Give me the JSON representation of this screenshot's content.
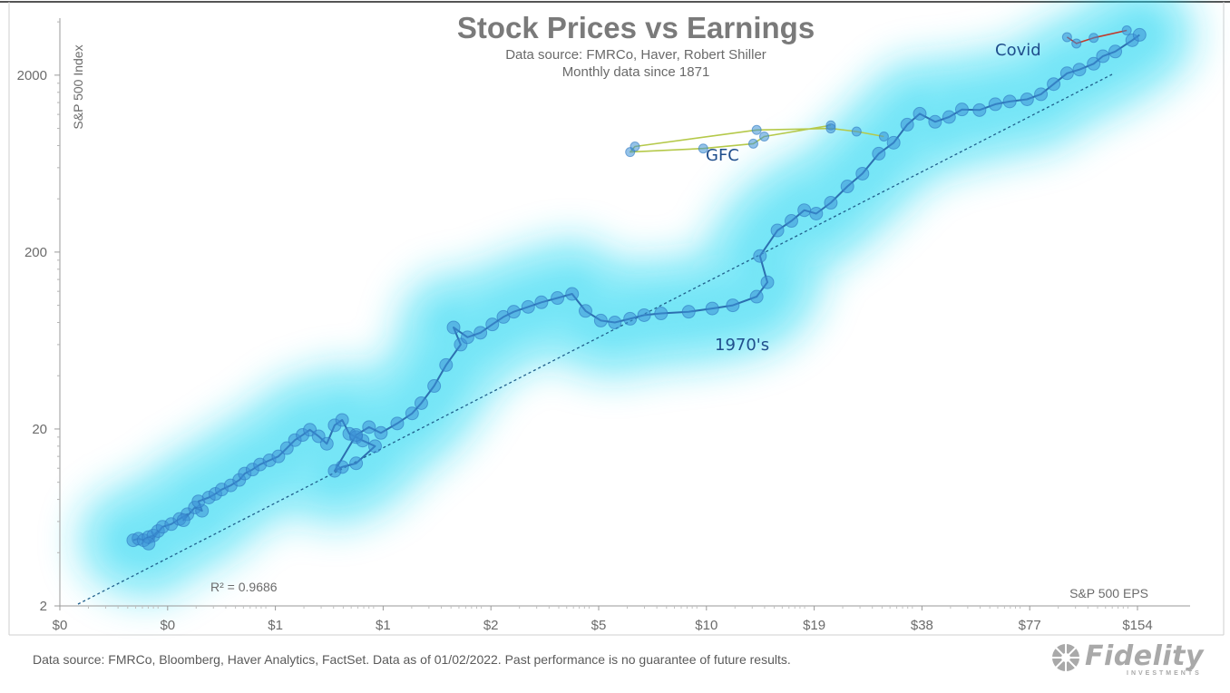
{
  "chart_data": {
    "type": "scatter",
    "title": "Stock Prices vs Earnings",
    "subtitle_lines": [
      "Data source: FMRCo, Haver, Robert Shiller",
      "Monthly data since 1871"
    ],
    "xlabel": "S&P 500 EPS",
    "ylabel": "S&P 500 Index",
    "x_scale": "log",
    "y_scale": "log",
    "x_tick_labels": [
      "$0",
      "$0",
      "$1",
      "$1",
      "$2",
      "$5",
      "$10",
      "$19",
      "$38",
      "$77",
      "$154"
    ],
    "y_tick_labels": [
      "2",
      "20",
      "200",
      "2000"
    ],
    "trendline": {
      "style": "dotted",
      "color": "#1f5f8c"
    },
    "r_squared": "R² = 0.9686",
    "annotations": [
      {
        "label": "Covid"
      },
      {
        "label": "GFC"
      },
      {
        "label": "1970's"
      }
    ],
    "colors": {
      "points": "#3d8fd6",
      "glow": "#19d6f2",
      "band_recent": "#b5c94a"
    },
    "series": [
      {
        "x": [
          0.3,
          0.31,
          0.32,
          0.33,
          0.34,
          0.35,
          0.33,
          0.36,
          0.38,
          0.4,
          0.42,
          0.41,
          0.44,
          0.46,
          0.45,
          0.48,
          0.5,
          0.52,
          0.55,
          0.58,
          0.6,
          0.63,
          0.66,
          0.7,
          0.74,
          0.78,
          0.82,
          0.86,
          0.9,
          0.95,
          1.0,
          1.05,
          1.1,
          1.15,
          1.2,
          1.25,
          1.35,
          1.2,
          1.1,
          1.05,
          1.2,
          1.3,
          1.4,
          1.55,
          1.7,
          1.8,
          1.95,
          2.1,
          2.3,
          2.2,
          2.4,
          2.6,
          2.8,
          3.0,
          3.2,
          3.5,
          3.8,
          4.2,
          4.6,
          5.0,
          5.5,
          6.0,
          6.6,
          7.2,
          8.0,
          9.5,
          11.0,
          12.5,
          14.5,
          15.5,
          14.8,
          16.5,
          18.0,
          19.5,
          21.0,
          23.0,
          25.5,
          28.0,
          31.0,
          34.0,
          37.0,
          40.0,
          44.0,
          48.0,
          52.0,
          58.0,
          64.0,
          70.0,
          78.0,
          85.0,
          92.0,
          100.0,
          108.0,
          118.0,
          125.0,
          135.0,
          150.0,
          157.0
        ],
        "y": [
          4.7,
          4.8,
          4.7,
          4.9,
          5.0,
          5.3,
          4.5,
          5.6,
          5.8,
          6.2,
          6.6,
          6.1,
          7.2,
          6.9,
          7.8,
          8.2,
          8.6,
          9.1,
          9.6,
          10.3,
          11.2,
          11.8,
          12.6,
          13.3,
          14.0,
          15.6,
          17.3,
          18.5,
          19.8,
          18.2,
          16.5,
          21.0,
          22.5,
          18.8,
          18.0,
          17.2,
          16.0,
          12.8,
          12.2,
          11.6,
          18.5,
          20.5,
          19.0,
          21.5,
          24.5,
          28.0,
          35.0,
          46.0,
          60.0,
          75.0,
          66.0,
          70.0,
          78.0,
          86.0,
          92.0,
          98.0,
          104.0,
          110.0,
          116.0,
          93.0,
          82.0,
          80.0,
          84.0,
          88.0,
          90.0,
          92.0,
          96.0,
          100.0,
          112.0,
          135.0,
          190.0,
          265.0,
          300.0,
          345.0,
          330.0,
          380.0,
          470.0,
          555.0,
          720.0,
          830.0,
          1050.0,
          1210.0,
          1090.0,
          1160.0,
          1280.0,
          1270.0,
          1370.0,
          1420.0,
          1460.0,
          1560.0,
          1780.0,
          2050.0,
          2150.0,
          2320.0,
          2560.0,
          2720.0,
          3150.0,
          3380.0
        ]
      },
      {
        "x": [
          23.0,
          15.2,
          14.2,
          10.4,
          6.6,
          6.8,
          14.5,
          23.0,
          27.0,
          32.0
        ],
        "y": [
          1040.0,
          900.0,
          820.0,
          770.0,
          735.0,
          790.0,
          980.0,
          1000.0,
          960.0,
          900.0
        ]
      },
      {
        "x": [
          100.0,
          106.0,
          118.0,
          145.0
        ],
        "y": [
          3280.0,
          3020.0,
          3250.0,
          3580.0
        ]
      }
    ]
  },
  "footer": {
    "source_note": "Data source: FMRCo, Bloomberg, Haver Analytics, FactSet. Data as of 01/02/2022. Past performance is no guarantee of future results."
  },
  "logo": {
    "name": "Fidelity",
    "tagline": "INVESTMENTS"
  }
}
